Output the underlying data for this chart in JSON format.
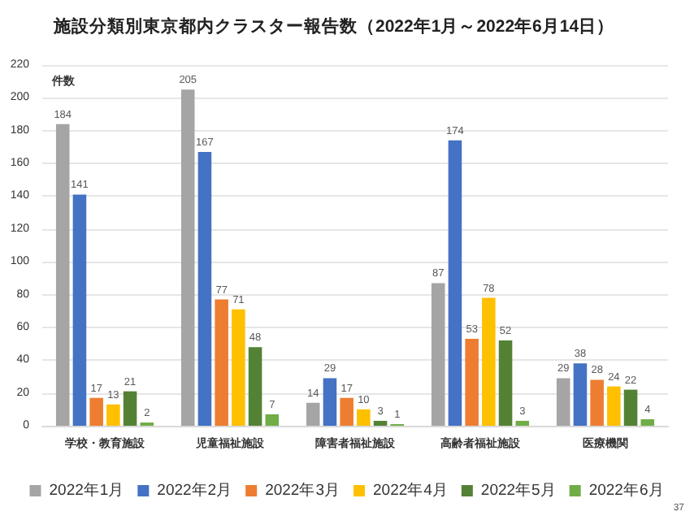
{
  "chart_data": {
    "type": "bar",
    "title": "施設分類別東京都内クラスター報告数（2022年1月～2022年6月14日）",
    "ylabel": "件数",
    "annotations": [
      "37"
    ],
    "categories": [
      "学校・教育施設",
      "児童福祉施設",
      "障害者福祉施設",
      "高齢者福祉施設",
      "医療機関"
    ],
    "series": [
      {
        "name": "2022年1月",
        "color": "#a5a5a5",
        "values": [
          184,
          205,
          14,
          87,
          29
        ]
      },
      {
        "name": "2022年2月",
        "color": "#4472c4",
        "values": [
          141,
          167,
          29,
          174,
          38
        ]
      },
      {
        "name": "2022年3月",
        "color": "#ed7d31",
        "values": [
          17,
          77,
          17,
          53,
          28
        ]
      },
      {
        "name": "2022年4月",
        "color": "#ffc000",
        "values": [
          13,
          71,
          10,
          78,
          24
        ]
      },
      {
        "name": "2022年5月",
        "color": "#548235",
        "values": [
          21,
          48,
          3,
          52,
          22
        ]
      },
      {
        "name": "2022年6月",
        "color": "#70ad47",
        "values": [
          2,
          7,
          1,
          3,
          4
        ]
      }
    ],
    "ylim": [
      0,
      220
    ],
    "yticks": [
      0,
      20,
      40,
      60,
      80,
      100,
      120,
      140,
      160,
      180,
      200,
      220
    ],
    "grid": "y",
    "legend": "bottom",
    "data_labels": true
  }
}
